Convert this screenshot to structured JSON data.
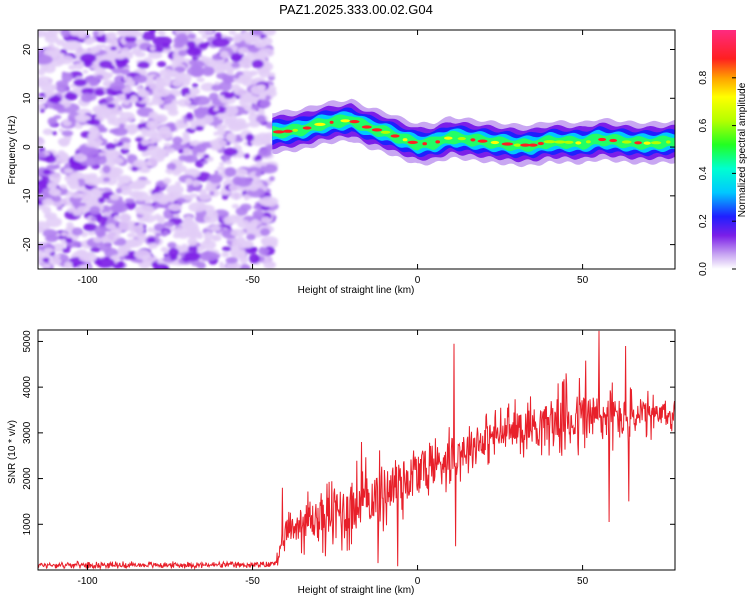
{
  "title": "PAZ1.2025.333.00.02.G04",
  "colors": {
    "signal": "#e8202a",
    "noise_light": "#e2cdf7",
    "noise_dark": "#7c1fe6",
    "axis": "#000000"
  },
  "chart_data": [
    {
      "type": "heatmap",
      "name": "spectrogram",
      "xlabel": "Height of straight line (km)",
      "ylabel": "Frequency (Hz)",
      "xlim": [
        -115,
        78
      ],
      "ylim": [
        -25,
        24
      ],
      "xticks": [
        -100,
        -50,
        0,
        50
      ],
      "xtick_labels": [
        "-100",
        "-50",
        "0",
        "50"
      ],
      "yticks": [
        -20,
        -10,
        0,
        10,
        20
      ],
      "ytick_labels": [
        "-20",
        "-10",
        "0",
        "10",
        "20"
      ],
      "noise_region_x": [
        -115,
        -44
      ],
      "signal_start_x": -44,
      "ridge": {
        "x": [
          -44,
          -40,
          -35,
          -30,
          -25,
          -20,
          -15,
          -10,
          -5,
          0,
          5,
          10,
          15,
          20,
          25,
          30,
          35,
          40,
          45,
          50,
          55,
          60,
          65,
          70,
          75,
          78
        ],
        "freq": [
          3.0,
          3.2,
          3.6,
          4.6,
          5.2,
          5.5,
          4.0,
          3.1,
          1.8,
          0.6,
          0.8,
          2.0,
          1.6,
          1.2,
          0.8,
          0.4,
          0.4,
          1.1,
          1.0,
          0.8,
          1.6,
          1.3,
          0.9,
          0.8,
          1.0,
          1.1
        ]
      },
      "colorbar": {
        "label": "Normalized spectral amplitude",
        "range": [
          0,
          1
        ],
        "ticks": [
          0.0,
          0.2,
          0.4,
          0.6,
          0.8
        ],
        "tick_labels": [
          "0.0",
          "0.2",
          "0.4",
          "0.6",
          "0.8"
        ]
      }
    },
    {
      "type": "line",
      "name": "snr",
      "xlabel": "Height of straight line (km)",
      "ylabel": "SNR (10 * v/v)",
      "xlim": [
        -115,
        78
      ],
      "ylim": [
        0,
        5250
      ],
      "xticks": [
        -100,
        -50,
        0,
        50
      ],
      "xtick_labels": [
        "-100",
        "-50",
        "0",
        "50"
      ],
      "yticks": [
        1000,
        2000,
        3000,
        4000,
        5000
      ],
      "ytick_labels": [
        "1000",
        "2000",
        "3000",
        "4000",
        "5000"
      ],
      "trend": {
        "x": [
          -115,
          -45,
          -42,
          -40,
          -35,
          -30,
          -20,
          -10,
          0,
          10,
          20,
          30,
          40,
          50,
          60,
          70,
          78
        ],
        "y": [
          110,
          110,
          250,
          800,
          1050,
          1100,
          1350,
          1750,
          2100,
          2500,
          2850,
          3100,
          3250,
          3350,
          3350,
          3350,
          3400
        ]
      },
      "spread": {
        "x": [
          -115,
          -45,
          -42,
          -35,
          -20,
          0,
          20,
          40,
          50,
          60,
          78
        ],
        "y": [
          50,
          50,
          150,
          450,
          650,
          550,
          380,
          480,
          650,
          500,
          250
        ]
      },
      "spikes": [
        {
          "x": 11,
          "y": 4950
        },
        {
          "x": 11.6,
          "y": 520
        },
        {
          "x": 55,
          "y": 5230
        },
        {
          "x": 51,
          "y": 4580
        },
        {
          "x": 58,
          "y": 1050
        },
        {
          "x": 63,
          "y": 4900
        },
        {
          "x": 64,
          "y": 1500
        },
        {
          "x": 45,
          "y": 4300
        },
        {
          "x": -12,
          "y": 150
        },
        {
          "x": -6,
          "y": 80
        },
        {
          "x": -17,
          "y": 2800
        },
        {
          "x": -41,
          "y": 1800
        }
      ],
      "samples": 1200
    }
  ]
}
